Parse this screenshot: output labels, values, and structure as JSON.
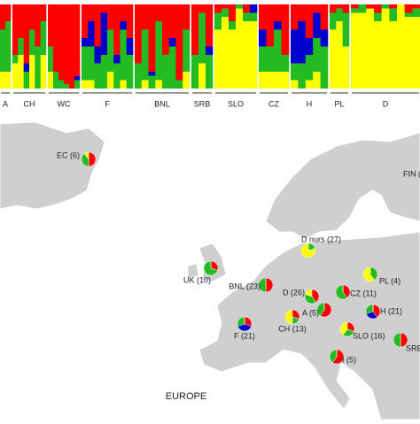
{
  "structure": {
    "components": [
      {
        "color": "#ff0000"
      },
      {
        "color": "#0000cc"
      },
      {
        "color": "#22bb22"
      },
      {
        "color": "#ffff00"
      }
    ],
    "groups": [
      {
        "label": "A",
        "columns": [
          [
            30,
            0,
            50,
            20
          ],
          [
            20,
            0,
            60,
            20
          ]
        ]
      },
      {
        "label": "CH",
        "columns": [
          [
            60,
            0,
            10,
            30
          ],
          [
            40,
            0,
            20,
            40
          ],
          [
            70,
            10,
            20,
            0
          ],
          [
            30,
            0,
            30,
            40
          ],
          [
            50,
            0,
            50,
            0
          ],
          [
            20,
            0,
            40,
            40
          ]
        ]
      },
      {
        "label": "WC",
        "columns": [
          [
            50,
            0,
            30,
            20
          ],
          [
            80,
            0,
            20,
            0
          ],
          [
            90,
            0,
            10,
            0
          ],
          [
            95,
            0,
            5,
            0
          ],
          [
            100,
            0,
            0,
            0
          ],
          [
            85,
            5,
            10,
            0
          ]
        ]
      },
      {
        "label": "F",
        "columns": [
          [
            40,
            10,
            40,
            10
          ],
          [
            20,
            30,
            40,
            10
          ],
          [
            50,
            20,
            30,
            0
          ],
          [
            10,
            50,
            40,
            0
          ],
          [
            30,
            0,
            50,
            20
          ],
          [
            60,
            10,
            30,
            0
          ],
          [
            20,
            10,
            60,
            10
          ],
          [
            40,
            20,
            40,
            0
          ]
        ]
      },
      {
        "label": "BNL",
        "columns": [
          [
            70,
            0,
            30,
            0
          ],
          [
            30,
            0,
            60,
            10
          ],
          [
            80,
            5,
            15,
            0
          ],
          [
            20,
            0,
            70,
            10
          ],
          [
            60,
            0,
            40,
            0
          ],
          [
            40,
            10,
            50,
            0
          ],
          [
            90,
            0,
            10,
            0
          ],
          [
            30,
            0,
            50,
            20
          ]
        ]
      },
      {
        "label": "SRB",
        "columns": [
          [
            60,
            0,
            40,
            0
          ],
          [
            10,
            0,
            60,
            30
          ],
          [
            50,
            10,
            40,
            0
          ]
        ]
      },
      {
        "label": "SLO",
        "columns": [
          [
            10,
            0,
            20,
            70
          ],
          [
            5,
            0,
            10,
            85
          ],
          [
            20,
            0,
            10,
            70
          ],
          [
            0,
            0,
            5,
            95
          ],
          [
            10,
            0,
            10,
            80
          ],
          [
            0,
            10,
            10,
            80
          ]
        ]
      },
      {
        "label": "CZ",
        "columns": [
          [
            30,
            20,
            30,
            20
          ],
          [
            50,
            0,
            30,
            20
          ],
          [
            20,
            10,
            50,
            20
          ],
          [
            60,
            0,
            20,
            20
          ]
        ]
      },
      {
        "label": "H",
        "columns": [
          [
            30,
            40,
            20,
            10
          ],
          [
            20,
            50,
            30,
            0
          ],
          [
            40,
            20,
            30,
            10
          ],
          [
            10,
            30,
            40,
            20
          ],
          [
            30,
            20,
            50,
            0
          ]
        ]
      },
      {
        "label": "PL",
        "columns": [
          [
            10,
            0,
            20,
            70
          ],
          [
            5,
            0,
            15,
            80
          ],
          [
            10,
            0,
            40,
            50
          ]
        ]
      },
      {
        "label": "D",
        "columns": [
          [
            5,
            0,
            5,
            90
          ],
          [
            0,
            0,
            10,
            90
          ],
          [
            5,
            0,
            0,
            95
          ],
          [
            10,
            0,
            10,
            80
          ],
          [
            0,
            0,
            5,
            95
          ],
          [
            5,
            0,
            15,
            80
          ],
          [
            0,
            0,
            0,
            100
          ],
          [
            10,
            0,
            5,
            85
          ],
          [
            5,
            0,
            10,
            85
          ]
        ]
      }
    ]
  },
  "map": {
    "title": "EUROPE",
    "pies": [
      {
        "label": "EC (6)",
        "values": [
          50,
          0,
          40,
          10
        ]
      },
      {
        "label": "UK (10)",
        "values": [
          30,
          0,
          70,
          0
        ]
      },
      {
        "label": "BNL (23)",
        "values": [
          50,
          0,
          50,
          0
        ]
      },
      {
        "label": "D nurs (27)",
        "values": [
          0,
          0,
          20,
          80
        ]
      },
      {
        "label": "D (26)",
        "values": [
          40,
          0,
          40,
          20
        ]
      },
      {
        "label": "PL (4)",
        "values": [
          0,
          0,
          40,
          60
        ]
      },
      {
        "label": "CZ (11)",
        "values": [
          40,
          0,
          60,
          0
        ]
      },
      {
        "label": "A (5)",
        "values": [
          60,
          0,
          40,
          0
        ]
      },
      {
        "label": "H (21)",
        "values": [
          40,
          30,
          30,
          0
        ]
      },
      {
        "label": "F (21)",
        "values": [
          30,
          40,
          30,
          0
        ]
      },
      {
        "label": "CH (13)",
        "values": [
          30,
          0,
          20,
          50
        ]
      },
      {
        "label": "SLO (16)",
        "values": [
          30,
          0,
          30,
          40
        ]
      },
      {
        "label": "SRB (",
        "values": [
          50,
          0,
          50,
          0
        ]
      },
      {
        "label": "I (5)",
        "values": [
          60,
          0,
          40,
          0
        ]
      }
    ],
    "extra_labels": [
      "FIN ("
    ]
  }
}
